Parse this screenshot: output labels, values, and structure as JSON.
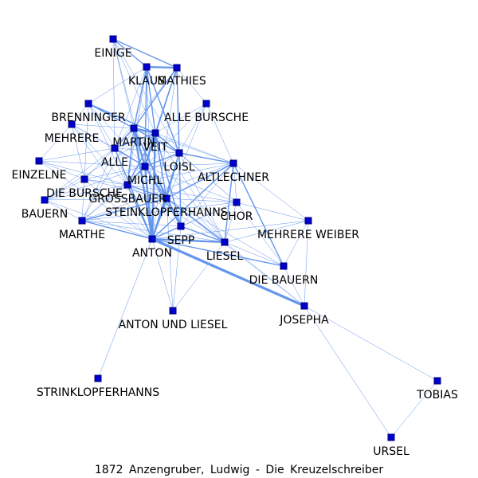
{
  "caption": "1872 Anzengruber, Ludwig - Die Kreuzelschreiber",
  "colors": {
    "edge": "#6495ed",
    "node": "#0000cd",
    "label": "#000000",
    "background": "#ffffff"
  },
  "nodes": [
    {
      "id": "EINIGE",
      "label": "EINIGE"
    },
    {
      "id": "KLAUS",
      "label": "KLAUS"
    },
    {
      "id": "MATHIES",
      "label": "MATHIES"
    },
    {
      "id": "BRENNINGER",
      "label": "BRENNINGER"
    },
    {
      "id": "ALLE_BURSCHE",
      "label": "ALLE BURSCHE"
    },
    {
      "id": "MEHRERE",
      "label": "MEHRERE"
    },
    {
      "id": "MARTIN",
      "label": "MARTIN"
    },
    {
      "id": "VEIT",
      "label": "VEIT"
    },
    {
      "id": "ALLE",
      "label": "ALLE"
    },
    {
      "id": "LOISL",
      "label": "LOISL"
    },
    {
      "id": "EINZELNE",
      "label": "EINZELNE"
    },
    {
      "id": "ALTLECHNER",
      "label": "ALTLECHNER"
    },
    {
      "id": "MICHL",
      "label": "MICHL"
    },
    {
      "id": "DIE_BURSCHE",
      "label": "DIE BURSCHE"
    },
    {
      "id": "GROSSBAUER",
      "label": "GROSSBAUER"
    },
    {
      "id": "BAUERN",
      "label": "BAUERN"
    },
    {
      "id": "STEINKLOPFERHANNS",
      "label": "STEINKLOPFERHANNS"
    },
    {
      "id": "CHOR",
      "label": "CHOR"
    },
    {
      "id": "MARTHE",
      "label": "MARTHE"
    },
    {
      "id": "MEHRERE_WEIBER",
      "label": "MEHRERE WEIBER"
    },
    {
      "id": "SEPP",
      "label": "SEPP"
    },
    {
      "id": "ANTON",
      "label": "ANTON"
    },
    {
      "id": "LIESEL",
      "label": "LIESEL"
    },
    {
      "id": "DIE_BAUERN",
      "label": "DIE BAUERN"
    },
    {
      "id": "ANTON_UND_LIESEL",
      "label": "ANTON UND LIESEL"
    },
    {
      "id": "JOSEPHA",
      "label": "JOSEPHA"
    },
    {
      "id": "STRINKLOPFERHANNS",
      "label": "STRINKLOPFERHANNS"
    },
    {
      "id": "TOBIAS",
      "label": "TOBIAS"
    },
    {
      "id": "URSEL",
      "label": "URSEL"
    }
  ],
  "edges": [
    [
      "EINIGE",
      "KLAUS",
      2
    ],
    [
      "EINIGE",
      "MATHIES",
      2
    ],
    [
      "EINIGE",
      "MARTIN",
      1
    ],
    [
      "EINIGE",
      "VEIT",
      1
    ],
    [
      "EINIGE",
      "MICHL",
      1
    ],
    [
      "EINIGE",
      "ALLE",
      1
    ],
    [
      "EINIGE",
      "LOISL",
      1
    ],
    [
      "KLAUS",
      "MATHIES",
      3
    ],
    [
      "KLAUS",
      "MARTIN",
      2
    ],
    [
      "KLAUS",
      "VEIT",
      2
    ],
    [
      "KLAUS",
      "MICHL",
      2
    ],
    [
      "KLAUS",
      "LOISL",
      2
    ],
    [
      "KLAUS",
      "ANTON",
      1
    ],
    [
      "KLAUS",
      "BRENNINGER",
      1
    ],
    [
      "KLAUS",
      "ALLE",
      1
    ],
    [
      "KLAUS",
      "GROSSBAUER",
      1
    ],
    [
      "MATHIES",
      "MARTIN",
      2
    ],
    [
      "MATHIES",
      "VEIT",
      2
    ],
    [
      "MATHIES",
      "MICHL",
      2
    ],
    [
      "MATHIES",
      "LOISL",
      2
    ],
    [
      "MATHIES",
      "ANTON",
      1
    ],
    [
      "MATHIES",
      "ALLE_BURSCHE",
      1
    ],
    [
      "MATHIES",
      "ALLE",
      1
    ],
    [
      "BRENNINGER",
      "MARTIN",
      2
    ],
    [
      "BRENNINGER",
      "VEIT",
      2
    ],
    [
      "BRENNINGER",
      "MICHL",
      1
    ],
    [
      "BRENNINGER",
      "LOISL",
      1
    ],
    [
      "BRENNINGER",
      "ALLE",
      1
    ],
    [
      "BRENNINGER",
      "MEHRERE",
      1
    ],
    [
      "BRENNINGER",
      "ANTON",
      1
    ],
    [
      "BRENNINGER",
      "DIE_BURSCHE",
      1
    ],
    [
      "ALLE_BURSCHE",
      "VEIT",
      1
    ],
    [
      "ALLE_BURSCHE",
      "LOISL",
      1
    ],
    [
      "ALLE_BURSCHE",
      "ALTLECHNER",
      1
    ],
    [
      "ALLE_BURSCHE",
      "MICHL",
      1
    ],
    [
      "ALLE_BURSCHE",
      "ANTON",
      1
    ],
    [
      "MEHRERE",
      "MARTIN",
      1
    ],
    [
      "MEHRERE",
      "ALLE",
      1
    ],
    [
      "MEHRERE",
      "MICHL",
      1
    ],
    [
      "MEHRERE",
      "DIE_BURSCHE",
      1
    ],
    [
      "MEHRERE",
      "ANTON",
      1
    ],
    [
      "MEHRERE",
      "EINZELNE",
      1
    ],
    [
      "MEHRERE",
      "GROSSBAUER",
      1
    ],
    [
      "MARTIN",
      "VEIT",
      3
    ],
    [
      "MARTIN",
      "MICHL",
      3
    ],
    [
      "MARTIN",
      "LOISL",
      2
    ],
    [
      "MARTIN",
      "ALLE",
      2
    ],
    [
      "MARTIN",
      "ANTON",
      3
    ],
    [
      "MARTIN",
      "GROSSBAUER",
      2
    ],
    [
      "MARTIN",
      "STEINKLOPFERHANNS",
      2
    ],
    [
      "MARTIN",
      "SEPP",
      2
    ],
    [
      "MARTIN",
      "ALTLECHNER",
      1
    ],
    [
      "MARTIN",
      "LIESEL",
      1
    ],
    [
      "MARTIN",
      "DIE_BURSCHE",
      1
    ],
    [
      "MARTIN",
      "MARTHE",
      1
    ],
    [
      "VEIT",
      "MICHL",
      3
    ],
    [
      "VEIT",
      "LOISL",
      2
    ],
    [
      "VEIT",
      "ALLE",
      2
    ],
    [
      "VEIT",
      "ANTON",
      3
    ],
    [
      "VEIT",
      "GROSSBAUER",
      2
    ],
    [
      "VEIT",
      "STEINKLOPFERHANNS",
      2
    ],
    [
      "VEIT",
      "SEPP",
      2
    ],
    [
      "VEIT",
      "ALTLECHNER",
      1
    ],
    [
      "VEIT",
      "LIESEL",
      1
    ],
    [
      "VEIT",
      "CHOR",
      1
    ],
    [
      "VEIT",
      "BAUERN",
      1
    ],
    [
      "ALLE",
      "MICHL",
      2
    ],
    [
      "ALLE",
      "LOISL",
      1
    ],
    [
      "ALLE",
      "ANTON",
      2
    ],
    [
      "ALLE",
      "GROSSBAUER",
      1
    ],
    [
      "ALLE",
      "EINZELNE",
      1
    ],
    [
      "ALLE",
      "DIE_BURSCHE",
      1
    ],
    [
      "ALLE",
      "BAUERN",
      1
    ],
    [
      "ALLE",
      "MARTHE",
      1
    ],
    [
      "ALLE",
      "STEINKLOPFERHANNS",
      1
    ],
    [
      "LOISL",
      "MICHL",
      2
    ],
    [
      "LOISL",
      "ALTLECHNER",
      2
    ],
    [
      "LOISL",
      "ANTON",
      2
    ],
    [
      "LOISL",
      "STEINKLOPFERHANNS",
      2
    ],
    [
      "LOISL",
      "SEPP",
      2
    ],
    [
      "LOISL",
      "GROSSBAUER",
      1
    ],
    [
      "LOISL",
      "CHOR",
      1
    ],
    [
      "LOISL",
      "LIESEL",
      1
    ],
    [
      "EINZELNE",
      "MICHL",
      1
    ],
    [
      "EINZELNE",
      "DIE_BURSCHE",
      1
    ],
    [
      "EINZELNE",
      "GROSSBAUER",
      1
    ],
    [
      "EINZELNE",
      "ANTON",
      1
    ],
    [
      "ALTLECHNER",
      "MICHL",
      1
    ],
    [
      "ALTLECHNER",
      "STEINKLOPFERHANNS",
      2
    ],
    [
      "ALTLECHNER",
      "CHOR",
      1
    ],
    [
      "ALTLECHNER",
      "SEPP",
      1
    ],
    [
      "ALTLECHNER",
      "LIESEL",
      2
    ],
    [
      "ALTLECHNER",
      "ANTON",
      2
    ],
    [
      "ALTLECHNER",
      "DIE_BAUERN",
      2
    ],
    [
      "ALTLECHNER",
      "MEHRERE_WEIBER",
      1
    ],
    [
      "ALTLECHNER",
      "GROSSBAUER",
      1
    ],
    [
      "ALTLECHNER",
      "MARTHE",
      1
    ],
    [
      "MICHL",
      "GROSSBAUER",
      2
    ],
    [
      "MICHL",
      "STEINKLOPFERHANNS",
      2
    ],
    [
      "MICHL",
      "ANTON",
      3
    ],
    [
      "MICHL",
      "SEPP",
      2
    ],
    [
      "MICHL",
      "LIESEL",
      1
    ],
    [
      "MICHL",
      "DIE_BURSCHE",
      1
    ],
    [
      "MICHL",
      "MARTHE",
      1
    ],
    [
      "MICHL",
      "CHOR",
      1
    ],
    [
      "MICHL",
      "BAUERN",
      1
    ],
    [
      "DIE_BURSCHE",
      "GROSSBAUER",
      1
    ],
    [
      "DIE_BURSCHE",
      "ANTON",
      1
    ],
    [
      "DIE_BURSCHE",
      "BAUERN",
      1
    ],
    [
      "DIE_BURSCHE",
      "MARTHE",
      1
    ],
    [
      "DIE_BURSCHE",
      "STEINKLOPFERHANNS",
      1
    ],
    [
      "GROSSBAUER",
      "STEINKLOPFERHANNS",
      2
    ],
    [
      "GROSSBAUER",
      "ANTON",
      2
    ],
    [
      "GROSSBAUER",
      "SEPP",
      1
    ],
    [
      "GROSSBAUER",
      "MARTHE",
      1
    ],
    [
      "GROSSBAUER",
      "BAUERN",
      1
    ],
    [
      "GROSSBAUER",
      "CHOR",
      1
    ],
    [
      "GROSSBAUER",
      "LIESEL",
      1
    ],
    [
      "BAUERN",
      "MARTHE",
      1
    ],
    [
      "BAUERN",
      "ANTON",
      1
    ],
    [
      "BAUERN",
      "STEINKLOPFERHANNS",
      1
    ],
    [
      "STEINKLOPFERHANNS",
      "ANTON",
      3
    ],
    [
      "STEINKLOPFERHANNS",
      "SEPP",
      2
    ],
    [
      "STEINKLOPFERHANNS",
      "LIESEL",
      2
    ],
    [
      "STEINKLOPFERHANNS",
      "CHOR",
      1
    ],
    [
      "STEINKLOPFERHANNS",
      "MARTHE",
      2
    ],
    [
      "STEINKLOPFERHANNS",
      "DIE_BAUERN",
      1
    ],
    [
      "STEINKLOPFERHANNS",
      "JOSEPHA",
      1
    ],
    [
      "STEINKLOPFERHANNS",
      "ANTON_UND_LIESEL",
      1
    ],
    [
      "CHOR",
      "ANTON",
      1
    ],
    [
      "CHOR",
      "SEPP",
      1
    ],
    [
      "CHOR",
      "LIESEL",
      1
    ],
    [
      "CHOR",
      "MEHRERE_WEIBER",
      1
    ],
    [
      "CHOR",
      "DIE_BAUERN",
      1
    ],
    [
      "CHOR",
      "MARTHE",
      1
    ],
    [
      "MARTHE",
      "ANTON",
      2
    ],
    [
      "MARTHE",
      "SEPP",
      1
    ],
    [
      "MARTHE",
      "LIESEL",
      1
    ],
    [
      "MEHRERE_WEIBER",
      "ANTON",
      1
    ],
    [
      "MEHRERE_WEIBER",
      "LIESEL",
      1
    ],
    [
      "MEHRERE_WEIBER",
      "DIE_BAUERN",
      1
    ],
    [
      "MEHRERE_WEIBER",
      "JOSEPHA",
      1
    ],
    [
      "SEPP",
      "ANTON",
      2
    ],
    [
      "SEPP",
      "LIESEL",
      2
    ],
    [
      "SEPP",
      "ANTON_UND_LIESEL",
      1
    ],
    [
      "ANTON",
      "LIESEL",
      3
    ],
    [
      "ANTON",
      "JOSEPHA",
      4
    ],
    [
      "ANTON",
      "DIE_BAUERN",
      2
    ],
    [
      "ANTON",
      "ANTON_UND_LIESEL",
      1
    ],
    [
      "ANTON",
      "STRINKLOPFERHANNS",
      1
    ],
    [
      "LIESEL",
      "DIE_BAUERN",
      1
    ],
    [
      "LIESEL",
      "JOSEPHA",
      1
    ],
    [
      "LIESEL",
      "ANTON_UND_LIESEL",
      1
    ],
    [
      "DIE_BAUERN",
      "JOSEPHA",
      1
    ],
    [
      "JOSEPHA",
      "TOBIAS",
      1
    ],
    [
      "JOSEPHA",
      "URSEL",
      1
    ],
    [
      "TOBIAS",
      "URSEL",
      1
    ]
  ]
}
